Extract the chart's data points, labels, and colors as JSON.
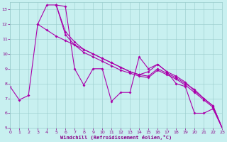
{
  "xlabel": "Windchill (Refroidissement éolien,°C)",
  "xlim": [
    0,
    23
  ],
  "ylim": [
    5,
    13.5
  ],
  "yticks": [
    5,
    6,
    7,
    8,
    9,
    10,
    11,
    12,
    13
  ],
  "xticks": [
    0,
    1,
    2,
    3,
    4,
    5,
    6,
    7,
    8,
    9,
    10,
    11,
    12,
    13,
    14,
    15,
    16,
    17,
    18,
    19,
    20,
    21,
    22,
    23
  ],
  "bg_color": "#c8f0f0",
  "line_color": "#aa00aa",
  "grid_color": "#99cccc",
  "line1_x": [
    0,
    1,
    2,
    3,
    4,
    5,
    6,
    7,
    8,
    9,
    10,
    11,
    12,
    13,
    14,
    15,
    16,
    17,
    18,
    19,
    20,
    21,
    22,
    23
  ],
  "line1_y": [
    7.8,
    6.9,
    7.2,
    12.0,
    13.3,
    13.3,
    13.2,
    9.0,
    7.9,
    9.0,
    9.0,
    6.8,
    7.4,
    7.4,
    9.8,
    9.0,
    9.3,
    8.8,
    8.0,
    7.8,
    6.0,
    6.0,
    6.3,
    5.0
  ],
  "line2_x": [
    3,
    4,
    5,
    6,
    7,
    8,
    9,
    10,
    11,
    12,
    13,
    14,
    15,
    16,
    17,
    18,
    19,
    20,
    21,
    22,
    23
  ],
  "line2_y": [
    12.0,
    11.6,
    11.2,
    10.9,
    10.6,
    10.3,
    10.0,
    9.7,
    9.4,
    9.1,
    8.8,
    8.6,
    8.8,
    9.3,
    8.8,
    8.5,
    8.1,
    7.5,
    7.0,
    6.5,
    5.0
  ],
  "line3_x": [
    5,
    6,
    7,
    8,
    9,
    10,
    11,
    12,
    13,
    14,
    15,
    16,
    17,
    18,
    19,
    20,
    21,
    22,
    23
  ],
  "line3_y": [
    13.3,
    11.5,
    10.8,
    10.3,
    10.0,
    9.7,
    9.4,
    9.1,
    8.8,
    8.6,
    8.5,
    9.0,
    8.7,
    8.4,
    8.0,
    7.6,
    7.0,
    6.5,
    5.0
  ],
  "line4_x": [
    5,
    6,
    7,
    8,
    9,
    10,
    11,
    12,
    13,
    14,
    15,
    16,
    17,
    18,
    19,
    20,
    21,
    22,
    23
  ],
  "line4_y": [
    13.3,
    11.3,
    10.6,
    10.1,
    9.8,
    9.5,
    9.2,
    8.9,
    8.7,
    8.5,
    8.4,
    8.9,
    8.6,
    8.3,
    7.9,
    7.4,
    6.9,
    6.4,
    5.0
  ],
  "xlabel_color": "#880088",
  "tick_label_color": "#880088",
  "lw": 0.8,
  "markersize": 2.0
}
